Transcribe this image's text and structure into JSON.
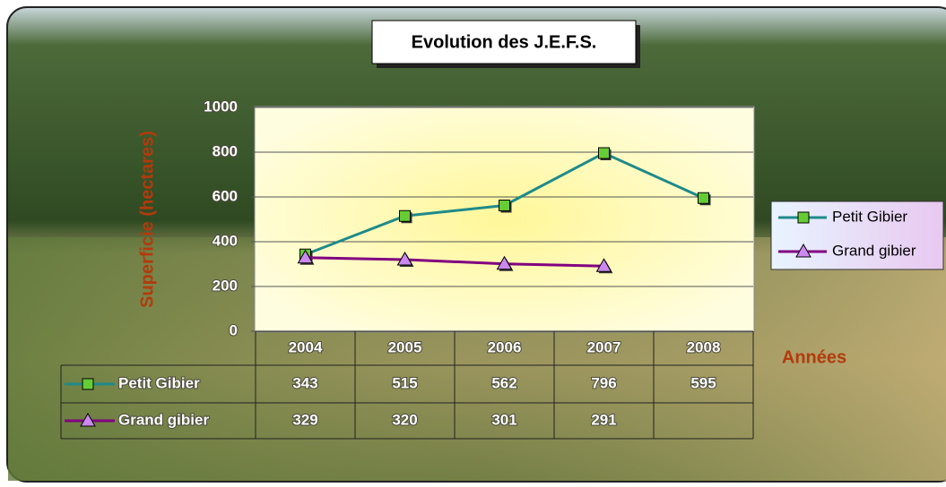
{
  "chart_data": {
    "type": "line",
    "title": "Evolution des J.E.F.S.",
    "y_label": "Superficie (hectares)",
    "x_label": "Années",
    "categories": [
      "2004",
      "2005",
      "2006",
      "2007",
      "2008"
    ],
    "series": [
      {
        "name": "Petit Gibier",
        "color": "#1f8a8a",
        "marker": "square",
        "marker_color": "#66cc33",
        "values": [
          343,
          515,
          562,
          796,
          595
        ]
      },
      {
        "name": "Grand gibier",
        "color": "#800080",
        "marker": "triangle",
        "marker_color": "#cc88ee",
        "values": [
          329,
          320,
          301,
          291,
          null
        ]
      }
    ],
    "ylim": [
      0,
      1000
    ],
    "yticks": [
      0,
      200,
      400,
      600,
      800,
      1000
    ],
    "grid": true,
    "legend": "right",
    "data_table": true
  }
}
